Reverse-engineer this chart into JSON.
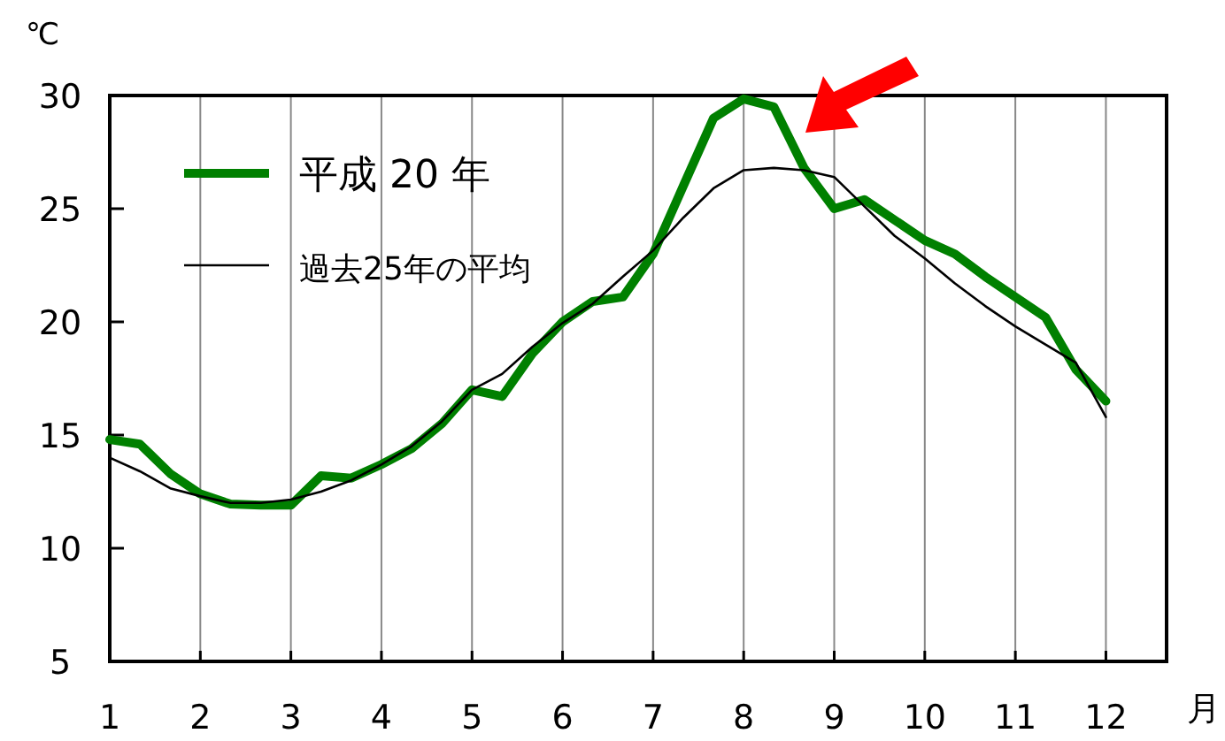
{
  "chart_data": {
    "type": "line",
    "xlabel": "月",
    "ylabel": "℃",
    "xlim": [
      1,
      12.67
    ],
    "ylim": [
      5,
      30
    ],
    "xticks": [
      1,
      2,
      3,
      4,
      5,
      6,
      7,
      8,
      9,
      10,
      11,
      12
    ],
    "yticks": [
      5,
      10,
      15,
      20,
      25,
      30
    ],
    "grid": "x",
    "legend": "top left",
    "marker": "none",
    "x": [
      1,
      1.333,
      1.667,
      2,
      2.333,
      2.667,
      3,
      3.333,
      3.667,
      4,
      4.333,
      4.667,
      5,
      5.333,
      5.667,
      6,
      6.333,
      6.667,
      7,
      7.333,
      7.667,
      8,
      8.333,
      8.667,
      9,
      9.333,
      9.667,
      10,
      10.333,
      10.667,
      11,
      11.333,
      11.667,
      12
    ],
    "series": [
      {
        "name": "平成 20 年",
        "color": "#008000",
        "values": [
          14.8,
          14.6,
          13.3,
          12.4,
          11.95,
          11.9,
          11.9,
          13.2,
          13.1,
          13.7,
          14.4,
          15.5,
          17.0,
          16.7,
          18.6,
          20.0,
          20.9,
          21.1,
          23.0,
          26.0,
          29.0,
          29.85,
          29.5,
          26.8,
          25.0,
          25.4,
          24.5,
          23.6,
          23.0,
          22.0,
          21.1,
          20.2,
          17.9,
          16.5
        ]
      },
      {
        "name": "過去25年の平均",
        "color": "#000000",
        "values": [
          14.0,
          13.4,
          12.65,
          12.3,
          12.0,
          12.0,
          12.15,
          12.5,
          13.0,
          13.7,
          14.5,
          15.6,
          17.0,
          17.7,
          18.9,
          19.95,
          20.8,
          22.0,
          23.15,
          24.6,
          25.9,
          26.7,
          26.8,
          26.7,
          26.4,
          25.1,
          23.8,
          22.8,
          21.7,
          20.7,
          19.8,
          19.0,
          18.2,
          15.8
        ]
      }
    ]
  }
}
